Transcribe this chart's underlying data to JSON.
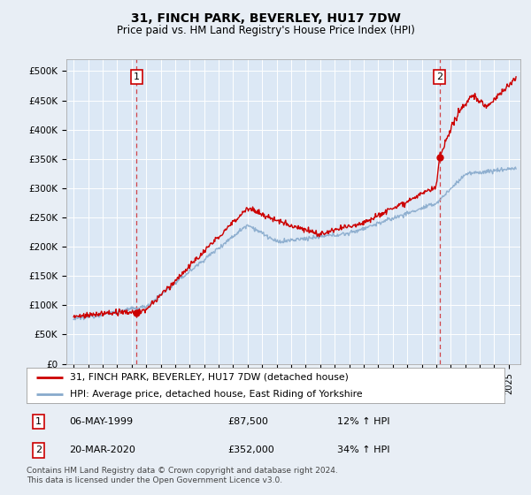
{
  "title": "31, FINCH PARK, BEVERLEY, HU17 7DW",
  "subtitle": "Price paid vs. HM Land Registry's House Price Index (HPI)",
  "ylabel_ticks": [
    "£0",
    "£50K",
    "£100K",
    "£150K",
    "£200K",
    "£250K",
    "£300K",
    "£350K",
    "£400K",
    "£450K",
    "£500K"
  ],
  "ytick_vals": [
    0,
    50000,
    100000,
    150000,
    200000,
    250000,
    300000,
    350000,
    400000,
    450000,
    500000
  ],
  "ylim": [
    0,
    520000
  ],
  "xlim_start": 1994.5,
  "xlim_end": 2025.8,
  "bg_color": "#e8eef5",
  "plot_bg_color": "#dce8f5",
  "grid_color": "#ffffff",
  "sale1_x": 1999.35,
  "sale1_y": 87500,
  "sale2_x": 2020.22,
  "sale2_y": 352000,
  "sale1_label": "1",
  "sale2_label": "2",
  "sale1_date": "06-MAY-1999",
  "sale1_price": "£87,500",
  "sale1_hpi": "12% ↑ HPI",
  "sale2_date": "20-MAR-2020",
  "sale2_price": "£352,000",
  "sale2_hpi": "34% ↑ HPI",
  "legend_line1": "31, FINCH PARK, BEVERLEY, HU17 7DW (detached house)",
  "legend_line2": "HPI: Average price, detached house, East Riding of Yorkshire",
  "footer": "Contains HM Land Registry data © Crown copyright and database right 2024.\nThis data is licensed under the Open Government Licence v3.0.",
  "line_color_house": "#cc0000",
  "line_color_hpi": "#88aacc",
  "sale_marker_color": "#cc0000",
  "dashed_line_color": "#cc0000"
}
